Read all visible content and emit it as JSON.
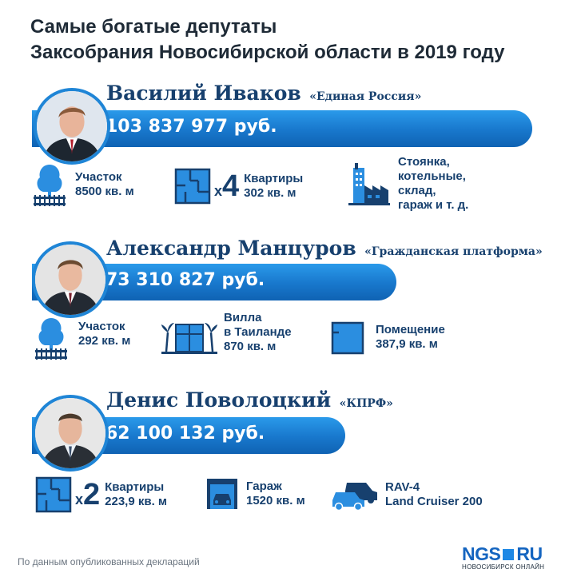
{
  "title": {
    "line1": "Самые богатые депутаты",
    "line2": "Заксобрания Новосибирской области в 2019 году"
  },
  "colors": {
    "accent": "#1f85d6",
    "text": "#17406e",
    "bar": "#1877cc"
  },
  "deputies": [
    {
      "name": "Василий Иваков",
      "party": "«Единая Россия»",
      "income": "103 837 977 руб.",
      "assets": [
        {
          "icon": "land-plot-icon",
          "lines": [
            "Участок",
            "8500 кв. м"
          ]
        },
        {
          "icon": "apartment-plan-icon",
          "multiplier_x": "x",
          "multiplier_n": "4",
          "lines": [
            "Квартиры",
            "302 кв. м"
          ]
        },
        {
          "icon": "industrial-buildings-icon",
          "lines": [
            "Стоянка,",
            "котельные,",
            "склад,",
            "гараж и т. д."
          ]
        }
      ]
    },
    {
      "name": "Александр Манцуров",
      "party": "«Гражданская платформа»",
      "income": "73  310 827 руб.",
      "assets": [
        {
          "icon": "land-plot-icon",
          "lines": [
            "Участок",
            "292 кв. м"
          ]
        },
        {
          "icon": "villa-palms-icon",
          "lines": [
            "Вилла",
            "в Таиланде",
            "870 кв. м"
          ]
        },
        {
          "icon": "premises-plan-icon",
          "lines": [
            "Помещение",
            "387,9 кв. м"
          ]
        }
      ]
    },
    {
      "name": "Денис Поволоцкий",
      "party": "«КПРФ»",
      "income": "62 100 132 руб.",
      "assets": [
        {
          "icon": "apartment-plan-icon",
          "multiplier_x": "x",
          "multiplier_n": "2",
          "lines": [
            "Квартиры",
            "223,9 кв. м"
          ]
        },
        {
          "icon": "garage-icon",
          "lines": [
            "Гараж",
            "1520 кв. м"
          ]
        },
        {
          "icon": "cars-icon",
          "lines": [
            "RAV-4",
            "Land Cruiser 200"
          ]
        }
      ]
    }
  ],
  "footer": {
    "note": "По данным опубликованных деклараций",
    "logo_left": "NGS",
    "logo_right": "RU",
    "logo_sub": "НОВОСИБИРСК ОНЛАЙН"
  }
}
